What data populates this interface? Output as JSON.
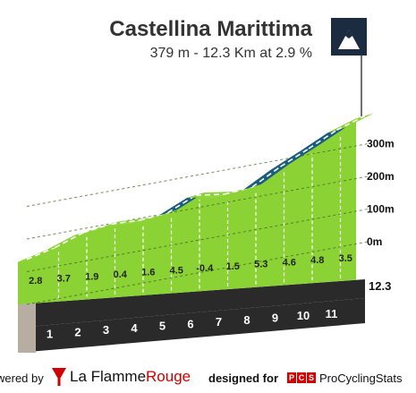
{
  "header": {
    "title": "Castellina Marittima",
    "subtitle": "379 m - 12.3 Km at 2.9 %",
    "summit_icon": "mountain-summit-icon"
  },
  "chart_data": {
    "type": "area",
    "title": "Castellina Marittima",
    "subtitle": "379 m - 12.3 Km at 2.9 %",
    "y_axis_labels": [
      "300m",
      "200m",
      "100m",
      "0m"
    ],
    "y_axis_values": [
      300,
      200,
      100,
      0
    ],
    "km_markers": [
      "1",
      "2",
      "3",
      "4",
      "5",
      "6",
      "7",
      "8",
      "9",
      "10",
      "11"
    ],
    "gradients": [
      "2.8",
      "3.7",
      "1.9",
      "0.4",
      "1.6",
      "4.5",
      "-0.4",
      "1.5",
      "5.3",
      "4.6",
      "4.8",
      "3.5"
    ],
    "gradient_values": [
      2.8,
      3.7,
      1.9,
      0.4,
      1.6,
      4.5,
      -0.4,
      1.5,
      5.3,
      4.6,
      4.8,
      3.5
    ],
    "total_length_label": "12.3",
    "total_length_km": 12.3,
    "start_altitude_m": 20,
    "summit_altitude_m": 379,
    "colors": {
      "gentle": "#8bd334",
      "steep": "#1b5c82",
      "base": "#2a2a2a",
      "side": "#b8ada1"
    }
  },
  "footer": {
    "powered_by": "wered by",
    "lfr_name_1": "La Flamme",
    "lfr_name_2": "Rouge",
    "designed_for": "designed for",
    "pcs_letters": [
      "P",
      "C",
      "S"
    ],
    "pcs_name": "ProCyclingStats"
  }
}
